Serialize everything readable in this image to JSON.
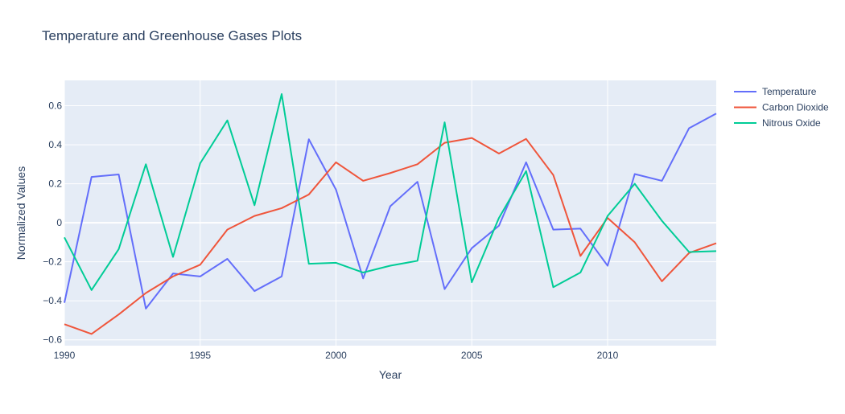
{
  "chart_data": {
    "type": "line",
    "title": "Temperature and Greenhouse Gases Plots",
    "xlabel": "Year",
    "ylabel": "Normalized Values",
    "xlim": [
      1990,
      2014
    ],
    "ylim": [
      -0.63,
      0.73
    ],
    "x_ticks": [
      1990,
      1995,
      2000,
      2005,
      2010
    ],
    "y_ticks": [
      -0.6,
      -0.4,
      -0.2,
      0,
      0.2,
      0.4,
      0.6
    ],
    "y_tick_labels": [
      "−0.6",
      "−0.4",
      "−0.2",
      "0",
      "0.2",
      "0.4",
      "0.6"
    ],
    "grid": true,
    "legend_position": "top-right",
    "plot_background": "#e5ecf6",
    "x": [
      1990,
      1991,
      1992,
      1993,
      1994,
      1995,
      1996,
      1997,
      1998,
      1999,
      2000,
      2001,
      2002,
      2003,
      2004,
      2005,
      2006,
      2007,
      2008,
      2009,
      2010,
      2011,
      2012,
      2013,
      2014
    ],
    "series": [
      {
        "name": "Temperature",
        "color": "#636efa",
        "values": [
          -0.41,
          0.235,
          0.248,
          -0.44,
          -0.26,
          -0.275,
          -0.185,
          -0.35,
          -0.275,
          0.428,
          0.17,
          -0.285,
          0.085,
          0.21,
          -0.34,
          -0.13,
          -0.015,
          0.31,
          -0.035,
          -0.03,
          -0.22,
          0.25,
          0.215,
          0.485,
          0.56
        ]
      },
      {
        "name": "Carbon Dioxide",
        "color": "#ef553b",
        "values": [
          -0.52,
          -0.57,
          -0.47,
          -0.36,
          -0.275,
          -0.215,
          -0.035,
          0.035,
          0.075,
          0.145,
          0.31,
          0.215,
          0.255,
          0.3,
          0.41,
          0.435,
          0.355,
          0.43,
          0.245,
          -0.17,
          0.025,
          -0.1,
          -0.3,
          -0.155,
          -0.105
        ]
      },
      {
        "name": "Nitrous Oxide",
        "color": "#00cc96",
        "values": [
          -0.075,
          -0.345,
          -0.135,
          0.3,
          -0.175,
          0.305,
          0.525,
          0.09,
          0.66,
          -0.21,
          -0.205,
          -0.255,
          -0.22,
          -0.195,
          0.515,
          -0.305,
          0.025,
          0.265,
          -0.33,
          -0.255,
          0.035,
          0.2,
          0.01,
          -0.15,
          -0.145
        ]
      }
    ]
  }
}
